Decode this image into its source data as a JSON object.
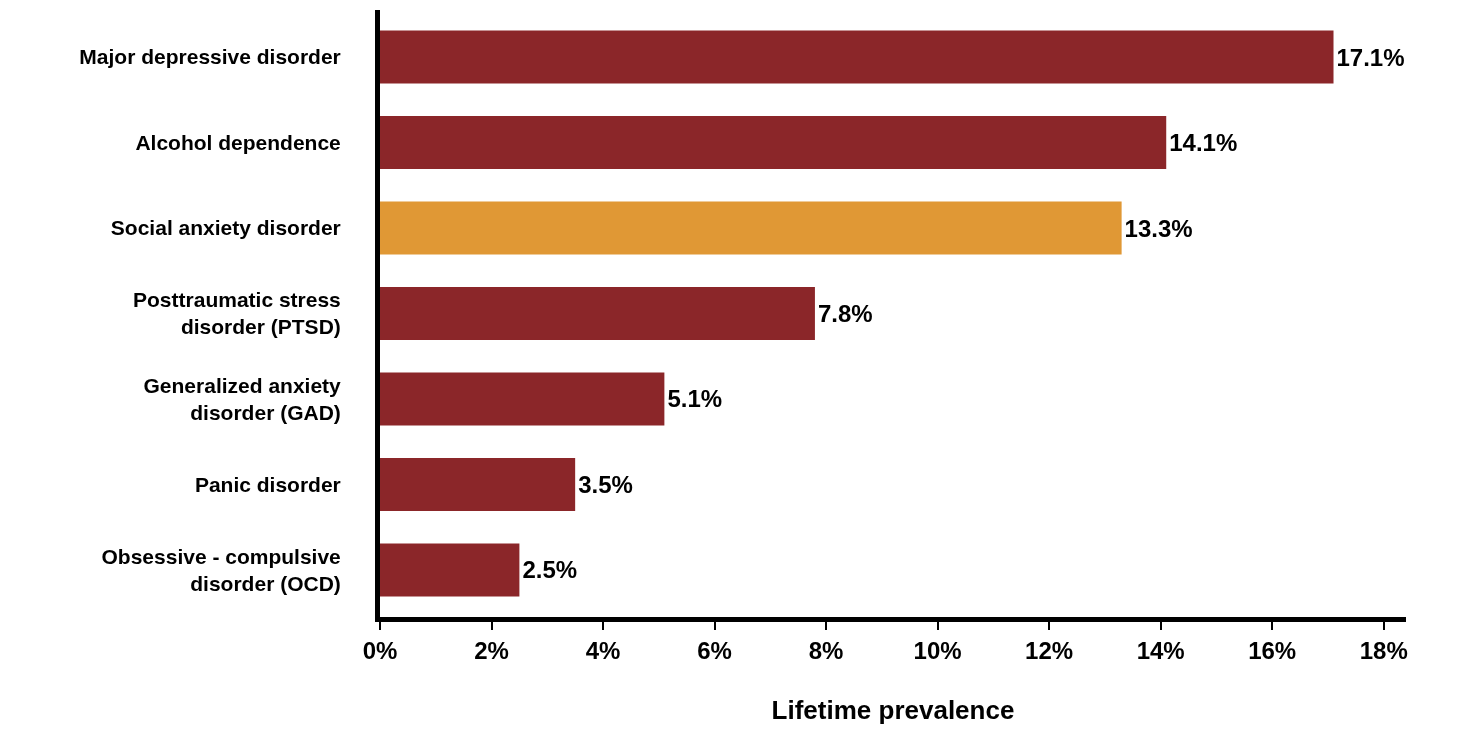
{
  "chart_data": {
    "type": "bar",
    "orientation": "horizontal",
    "xlabel": "Lifetime prevalence",
    "categories": [
      "Major depressive disorder",
      "Alcohol dependence",
      "Social anxiety disorder",
      "Posttraumatic stress disorder (PTSD)",
      "Generalized anxiety disorder (GAD)",
      "Panic disorder",
      "Obsessive - compulsive disorder (OCD)"
    ],
    "values": [
      17.1,
      14.1,
      13.3,
      7.8,
      5.1,
      3.5,
      2.5
    ],
    "value_labels": [
      "17.1%",
      "14.1%",
      "13.3%",
      "7.8%",
      "5.1%",
      "3.5%",
      "2.5%"
    ],
    "colors": [
      "#8b2629",
      "#8b2629",
      "#e09835",
      "#8b2629",
      "#8b2629",
      "#8b2629",
      "#8b2629"
    ],
    "xlim": [
      0,
      18.4
    ],
    "xticks": [
      {
        "value": 0,
        "label": "0%"
      },
      {
        "value": 2,
        "label": "2%"
      },
      {
        "value": 4,
        "label": "4%"
      },
      {
        "value": 6,
        "label": "6%"
      },
      {
        "value": 8,
        "label": "8%"
      },
      {
        "value": 10,
        "label": "10%"
      },
      {
        "value": 12,
        "label": "12%"
      },
      {
        "value": 14,
        "label": "14%"
      },
      {
        "value": 16,
        "label": "16%"
      },
      {
        "value": 18,
        "label": "18%"
      }
    ],
    "grid": false,
    "legend": false
  }
}
